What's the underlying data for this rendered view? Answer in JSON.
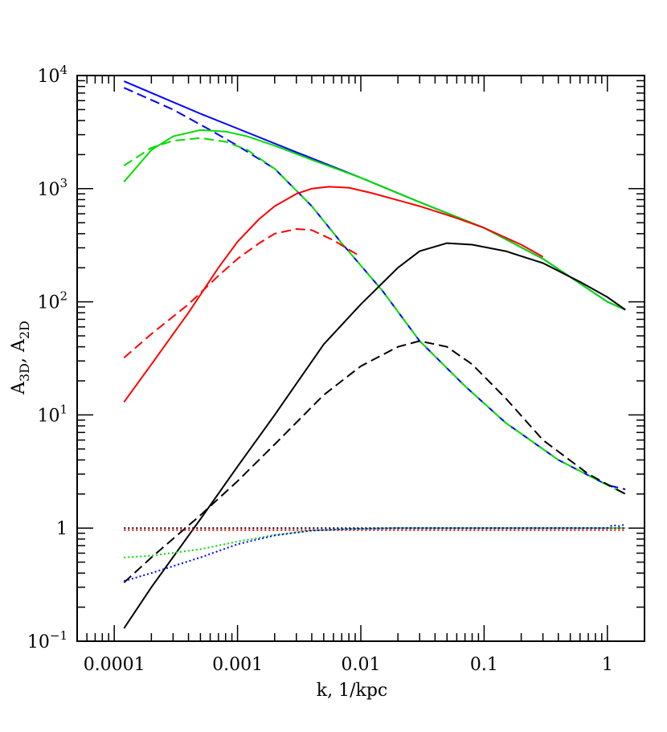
{
  "chart_data": {
    "type": "line",
    "title": "",
    "xlabel": "k, 1/kpc",
    "ylabel_main": "A",
    "ylabel_sub1": "3D",
    "ylabel_sep": ", A",
    "ylabel_sub2": "2D",
    "x_scale": "log",
    "y_scale": "log",
    "xlim": [
      5e-05,
      2.0
    ],
    "ylim": [
      0.1,
      10000
    ],
    "grid": false,
    "legend": "none",
    "x_ticks": [
      {
        "value": 0.0001,
        "label": "0.0001"
      },
      {
        "value": 0.001,
        "label": "0.001"
      },
      {
        "value": 0.01,
        "label": "0.01"
      },
      {
        "value": 0.1,
        "label": "0.1"
      },
      {
        "value": 1,
        "label": "1"
      }
    ],
    "y_ticks": [
      {
        "value": 0.1,
        "base": "10",
        "exp": "−1"
      },
      {
        "value": 1,
        "base": "1",
        "exp": ""
      },
      {
        "value": 10,
        "base": "10",
        "exp": "1"
      },
      {
        "value": 100,
        "base": "10",
        "exp": "2"
      },
      {
        "value": 1000,
        "base": "10",
        "exp": "3"
      },
      {
        "value": 10000,
        "base": "10",
        "exp": "4"
      }
    ],
    "series": [
      {
        "color": "#0000ff",
        "dash": "solid",
        "x": [
          0.00012,
          0.0005,
          0.001,
          0.003,
          0.01,
          0.03,
          0.1,
          0.3,
          1.0,
          1.4
        ],
        "y": [
          8900,
          4600,
          3400,
          2100,
          1250,
          760,
          450,
          240,
          100,
          85
        ]
      },
      {
        "color": "#0000ff",
        "dash": "dashed",
        "x": [
          0.00012,
          0.0003,
          0.0006,
          0.001,
          0.002,
          0.004,
          0.007,
          0.015,
          0.03,
          0.07,
          0.15,
          0.4,
          1.0,
          1.4
        ],
        "y": [
          7800,
          5000,
          3300,
          2400,
          1500,
          700,
          330,
          125,
          45,
          18,
          8.5,
          4,
          2.4,
          2.2
        ]
      },
      {
        "color": "#00dd00",
        "dash": "solid",
        "x": [
          0.00012,
          0.0002,
          0.0003,
          0.0005,
          0.0008,
          0.0012,
          0.002,
          0.004,
          0.01,
          0.03,
          0.1,
          0.3,
          1.0,
          1.4
        ],
        "y": [
          1150,
          2200,
          2900,
          3300,
          3200,
          2900,
          2400,
          1800,
          1250,
          760,
          450,
          240,
          100,
          85
        ]
      },
      {
        "color": "#00dd00",
        "dash": "dashed",
        "x": [
          0.00012,
          0.0002,
          0.0003,
          0.0005,
          0.0008,
          0.0012,
          0.002,
          0.004,
          0.007,
          0.015,
          0.03,
          0.07,
          0.15,
          0.4,
          1.0,
          1.4
        ],
        "y": [
          1600,
          2300,
          2650,
          2800,
          2600,
          2200,
          1500,
          700,
          330,
          125,
          45,
          18,
          8.5,
          4,
          2.4,
          2.0
        ]
      },
      {
        "color": "#ff0000",
        "dash": "solid",
        "x": [
          0.00012,
          0.0002,
          0.0004,
          0.0007,
          0.001,
          0.0015,
          0.002,
          0.003,
          0.004,
          0.0055,
          0.008,
          0.012,
          0.02,
          0.03,
          0.06,
          0.1,
          0.2,
          0.3
        ],
        "y": [
          13,
          28,
          80,
          200,
          340,
          540,
          700,
          900,
          1000,
          1040,
          1020,
          920,
          790,
          700,
          550,
          450,
          320,
          250
        ]
      },
      {
        "color": "#ff0000",
        "dash": "dashed",
        "x": [
          0.00012,
          0.0002,
          0.0004,
          0.0007,
          0.001,
          0.0015,
          0.002,
          0.003,
          0.004,
          0.006,
          0.01
        ],
        "y": [
          32,
          52,
          95,
          170,
          240,
          330,
          400,
          440,
          430,
          350,
          250
        ]
      },
      {
        "color": "#000000",
        "dash": "solid",
        "x": [
          0.00012,
          0.0002,
          0.0005,
          0.001,
          0.002,
          0.005,
          0.01,
          0.02,
          0.03,
          0.05,
          0.08,
          0.15,
          0.3,
          0.6,
          1.0,
          1.4
        ],
        "y": [
          0.13,
          0.3,
          1.2,
          3.5,
          10,
          42,
          95,
          200,
          280,
          330,
          320,
          280,
          220,
          150,
          110,
          85
        ]
      },
      {
        "color": "#000000",
        "dash": "dashed",
        "x": [
          0.00012,
          0.0002,
          0.0005,
          0.001,
          0.002,
          0.005,
          0.01,
          0.02,
          0.03,
          0.05,
          0.08,
          0.15,
          0.3,
          0.7,
          1.4
        ],
        "y": [
          0.33,
          0.55,
          1.3,
          2.6,
          5.5,
          15,
          27,
          40,
          45,
          40,
          28,
          14,
          6,
          3,
          2.0
        ]
      },
      {
        "color": "#000000",
        "dash": "dotted",
        "x": [
          0.00012,
          1.4
        ],
        "y": [
          1.0,
          1.0
        ]
      },
      {
        "color": "#ff0000",
        "dash": "dotted",
        "x": [
          0.00012,
          1.4
        ],
        "y": [
          0.96,
          0.96
        ]
      },
      {
        "color": "#00dd00",
        "dash": "dotted",
        "x": [
          0.00012,
          0.0002,
          0.0005,
          0.001,
          0.002,
          0.004,
          0.008,
          0.02,
          0.1,
          1.0,
          1.4
        ],
        "y": [
          0.55,
          0.57,
          0.65,
          0.76,
          0.87,
          0.95,
          0.98,
          1.0,
          1.0,
          1.0,
          1.0
        ]
      },
      {
        "color": "#0000ff",
        "dash": "dotted",
        "x": [
          0.00012,
          0.0002,
          0.0005,
          0.001,
          0.002,
          0.004,
          0.008,
          0.02,
          0.1,
          1.0,
          1.1,
          1.25,
          1.4
        ],
        "y": [
          0.34,
          0.4,
          0.55,
          0.72,
          0.86,
          0.95,
          0.98,
          1.0,
          1.0,
          1.0,
          1.06,
          1.04,
          1.08
        ]
      }
    ]
  }
}
